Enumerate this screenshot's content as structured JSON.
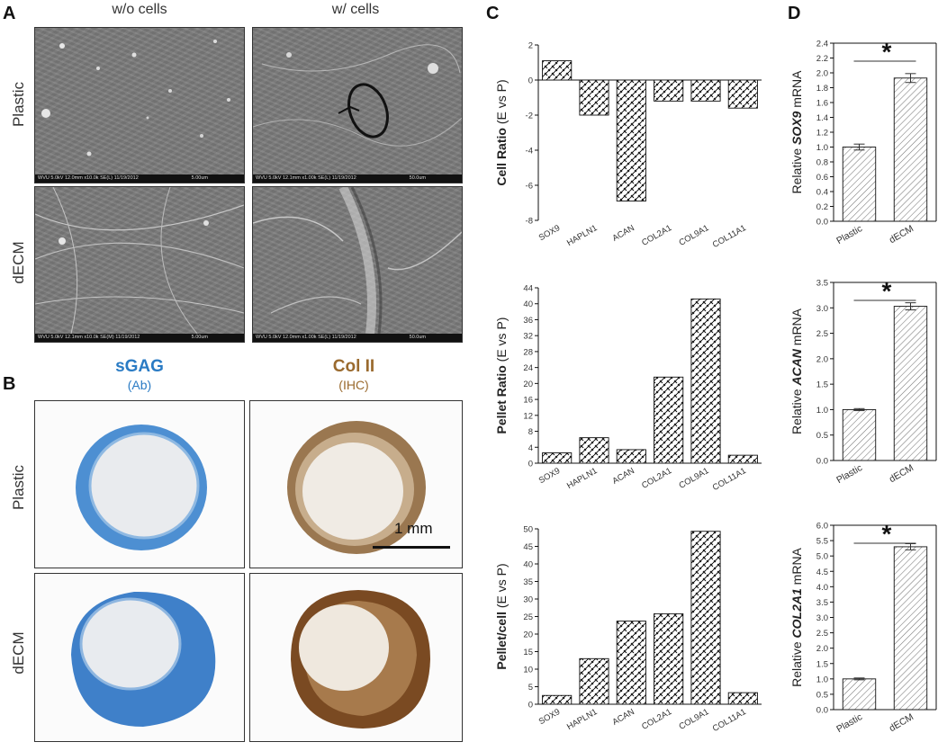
{
  "panels": {
    "A": {
      "letter": "A",
      "col_headers": [
        "w/o cells",
        "w/ cells"
      ],
      "row_headers": [
        "Plastic",
        "dECM"
      ],
      "images": [
        {
          "footer": "WVU 5.0kV 12.0mm x10.0k SE(L) 11/19/2012",
          "scale": "5.00um"
        },
        {
          "footer": "WVU 5.0kV 12.1mm x1.00k SE(L) 11/19/2012",
          "scale": "50.0um"
        },
        {
          "footer": "WVU 5.0kV 12.1mm x10.0k SE(M) 11/19/2012",
          "scale": "5.00um"
        },
        {
          "footer": "WVU 5.0kV 12.0mm x1.00k SE(L) 11/19/2012",
          "scale": "50.0um"
        }
      ]
    },
    "B": {
      "letter": "B",
      "stains": [
        {
          "title": "sGAG",
          "subtitle": "(Ab)",
          "color": "#2a7bc4"
        },
        {
          "title": "Col II",
          "subtitle": "(IHC)",
          "color": "#9a6a2e"
        }
      ],
      "row_headers": [
        "Plastic",
        "dECM"
      ],
      "scale_label": "1 mm"
    },
    "C": {
      "letter": "C"
    },
    "D": {
      "letter": "D"
    }
  },
  "chart_data": [
    {
      "id": "cell-ratio",
      "type": "bar",
      "ylabel_bold": "Cell Ratio",
      "ylabel_rest": " (E vs P)",
      "categories": [
        "SOX9",
        "HAPLN1",
        "ACAN",
        "COL2A1",
        "COL9A1",
        "COL11A1"
      ],
      "values": [
        1.1,
        -2.0,
        -6.9,
        -1.2,
        -1.2,
        -1.6
      ],
      "ylim": [
        -8,
        2
      ],
      "yticks": [
        2,
        0,
        -2,
        -4,
        -6,
        -8
      ]
    },
    {
      "id": "pellet-ratio",
      "type": "bar",
      "ylabel_bold": "Pellet Ratio",
      "ylabel_rest": " (E vs P)",
      "categories": [
        "SOX9",
        "HAPLN1",
        "ACAN",
        "COL2A1",
        "COL9A1",
        "COL11A1"
      ],
      "values": [
        2.6,
        6.4,
        3.4,
        21.6,
        41.2,
        2.0
      ],
      "ylim": [
        0,
        44
      ],
      "yticks": [
        0,
        4,
        8,
        12,
        16,
        20,
        24,
        28,
        32,
        36,
        40,
        44
      ]
    },
    {
      "id": "pellet-cell",
      "type": "bar",
      "ylabel_bold": "Pellet/cell",
      "ylabel_rest": " (E vs P)",
      "categories": [
        "SOX9",
        "HAPLN1",
        "ACAN",
        "COL2A1",
        "COL9A1",
        "COL11A1"
      ],
      "values": [
        2.5,
        13.0,
        23.7,
        25.8,
        49.3,
        3.3
      ],
      "ylim": [
        0,
        50
      ],
      "yticks": [
        0,
        5,
        10,
        15,
        20,
        25,
        30,
        35,
        40,
        45,
        50
      ]
    },
    {
      "id": "sox9-mrna",
      "type": "bar",
      "ylabel_pre": "Relative ",
      "ylabel_gene": "SOX9",
      "ylabel_post": " mRNA",
      "categories": [
        "Plastic",
        "dECM"
      ],
      "values": [
        1.0,
        1.93
      ],
      "errors": [
        0.04,
        0.06
      ],
      "ylim": [
        0,
        2.4
      ],
      "yticks": [
        0.0,
        0.2,
        0.4,
        0.6,
        0.8,
        1.0,
        1.2,
        1.4,
        1.6,
        1.8,
        2.0,
        2.2,
        2.4
      ],
      "tick_decimals": 1,
      "significance": "*"
    },
    {
      "id": "acan-mrna",
      "type": "bar",
      "ylabel_pre": "Relative ",
      "ylabel_gene": "ACAN",
      "ylabel_post": " mRNA",
      "categories": [
        "Plastic",
        "dECM"
      ],
      "values": [
        1.0,
        3.03
      ],
      "errors": [
        0.02,
        0.07
      ],
      "ylim": [
        0,
        3.5
      ],
      "yticks": [
        0.0,
        0.5,
        1.0,
        1.5,
        2.0,
        2.5,
        3.0,
        3.5
      ],
      "tick_decimals": 1,
      "significance": "*"
    },
    {
      "id": "col2a1-mrna",
      "type": "bar",
      "ylabel_pre": "Relative ",
      "ylabel_gene": "COL2A1",
      "ylabel_post": " mRNA",
      "categories": [
        "Plastic",
        "dECM"
      ],
      "values": [
        1.0,
        5.3
      ],
      "errors": [
        0.03,
        0.1
      ],
      "ylim": [
        0,
        6.0
      ],
      "yticks": [
        0.0,
        0.5,
        1.0,
        1.5,
        2.0,
        2.5,
        3.0,
        3.5,
        4.0,
        4.5,
        5.0,
        5.5,
        6.0
      ],
      "tick_decimals": 1,
      "significance": "*"
    }
  ]
}
